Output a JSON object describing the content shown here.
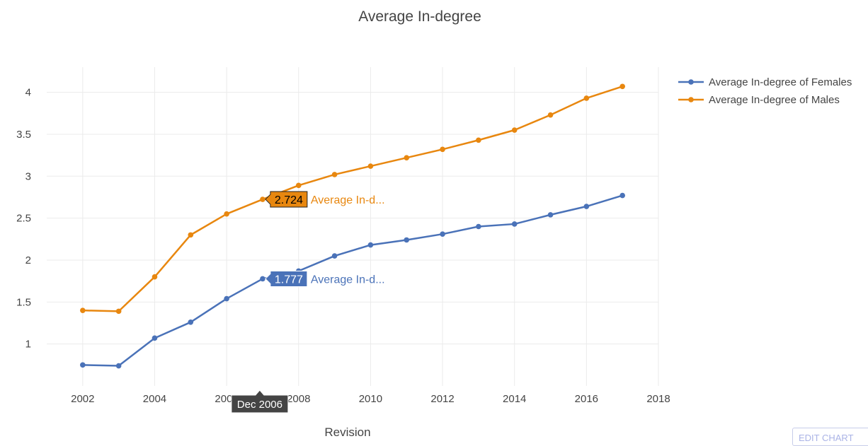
{
  "chart_data": {
    "type": "line",
    "title": "Average In-degree",
    "xlabel": "Revision",
    "ylabel": "",
    "x": [
      2002,
      2003,
      2004,
      2005,
      2006,
      2007,
      2008,
      2009,
      2010,
      2011,
      2012,
      2013,
      2014,
      2015,
      2016,
      2017
    ],
    "xlim": [
      2001,
      2018
    ],
    "ylim": [
      0.5,
      4.3
    ],
    "x_ticks": [
      2002,
      2004,
      2006,
      2008,
      2010,
      2012,
      2014,
      2016,
      2018
    ],
    "y_ticks": [
      1,
      1.5,
      2,
      2.5,
      3,
      3.5,
      4
    ],
    "x_tick_labels": [
      "2002",
      "2004",
      "2006",
      "2008",
      "2010",
      "2012",
      "2014",
      "2016",
      "2018"
    ],
    "y_tick_labels": [
      "1",
      "1.5",
      "2",
      "2.5",
      "3",
      "3.5",
      "4"
    ],
    "grid": true,
    "legend_position": "top-right",
    "series": [
      {
        "name": "Average In-degree of Females",
        "color": "#4a72b8",
        "values": [
          0.75,
          0.74,
          1.07,
          1.26,
          1.54,
          1.777,
          1.87,
          2.05,
          2.18,
          2.24,
          2.31,
          2.4,
          2.43,
          2.54,
          2.64,
          2.77
        ]
      },
      {
        "name": "Average In-degree of Males",
        "color": "#e8870f",
        "values": [
          1.4,
          1.39,
          1.8,
          2.3,
          2.55,
          2.724,
          2.89,
          3.02,
          3.12,
          3.22,
          3.32,
          3.43,
          3.55,
          3.73,
          3.93,
          4.07
        ]
      }
    ],
    "hover": {
      "x": 2006.92,
      "x_label": "Dec 2006",
      "labels": [
        {
          "value": "2.724",
          "name": "Average In-d...",
          "series_index": 1
        },
        {
          "value": "1.777",
          "name": "Average In-d...",
          "series_index": 0
        }
      ]
    }
  },
  "controls": {
    "edit_chart_label": "EDIT CHART"
  }
}
